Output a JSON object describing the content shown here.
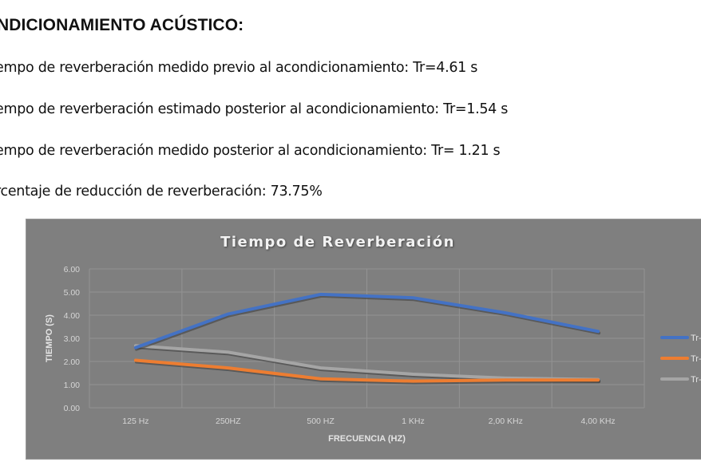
{
  "document": {
    "heading": "NDICIONAMIENTO ACÚSTICO:",
    "lines": [
      "empo de reverberación medido previo al acondicionamiento: Tr=4.61 s",
      "empo de reverberación estimado posterior al acondicionamiento: Tr=1.54 s",
      "empo de reverberación medido posterior al acondicionamiento: Tr= 1.21 s",
      "rcentaje de reducción de reverberación: 73.75%"
    ]
  },
  "chart_data": {
    "type": "line",
    "title": "Tiempo de Reverberación",
    "xlabel": "FRECUENCIA (HZ)",
    "ylabel": "TIEMPO (S)",
    "categories": [
      "125 Hz",
      "250HZ",
      "500 HZ",
      "1 KHz",
      "2,00 KHz",
      "4,00 KHz"
    ],
    "ylim": [
      0,
      6
    ],
    "yticks": [
      "0.00",
      "1.00",
      "2.00",
      "3.00",
      "4.00",
      "5.00",
      "6.00"
    ],
    "grid": true,
    "legend_position": "right",
    "series": [
      {
        "name": "Tr-",
        "color": "#4472c4",
        "values": [
          2.6,
          4.05,
          4.9,
          4.75,
          4.1,
          3.3
        ]
      },
      {
        "name": "Tr-",
        "color": "#ed7d31",
        "values": [
          2.05,
          1.72,
          1.25,
          1.15,
          1.2,
          1.2
        ]
      },
      {
        "name": "Tr-",
        "color": "#a5a5a5",
        "values": [
          2.68,
          2.4,
          1.72,
          1.45,
          1.28,
          1.22
        ]
      }
    ],
    "background": "#7f7f7f"
  }
}
